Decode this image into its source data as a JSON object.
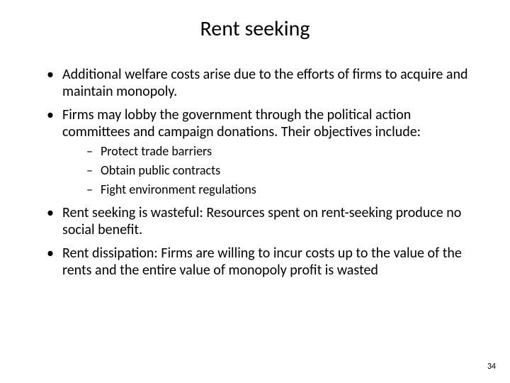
{
  "title": "Rent seeking",
  "bullets": [
    {
      "text": "Additional welfare costs arise due to the efforts of firms to acquire and maintain monopoly."
    },
    {
      "text": "Firms may lobby the government through the political action committees and campaign donations. Their objectives include:",
      "sub": [
        "Protect trade barriers",
        "Obtain public contracts",
        "Fight environment regulations"
      ]
    },
    {
      "text": "Rent seeking is wasteful: Resources spent on rent-seeking produce no social benefit."
    },
    {
      "text": "Rent dissipation: Firms are willing to incur costs up to the value of the rents and the entire value of monopoly profit is wasted"
    }
  ],
  "page_number": "34",
  "styling": {
    "background_color": "#ffffff",
    "text_color": "#000000",
    "title_fontsize": 30,
    "body_fontsize": 20,
    "sub_fontsize": 18,
    "pagenum_fontsize": 12,
    "font_family": "Calibri"
  }
}
